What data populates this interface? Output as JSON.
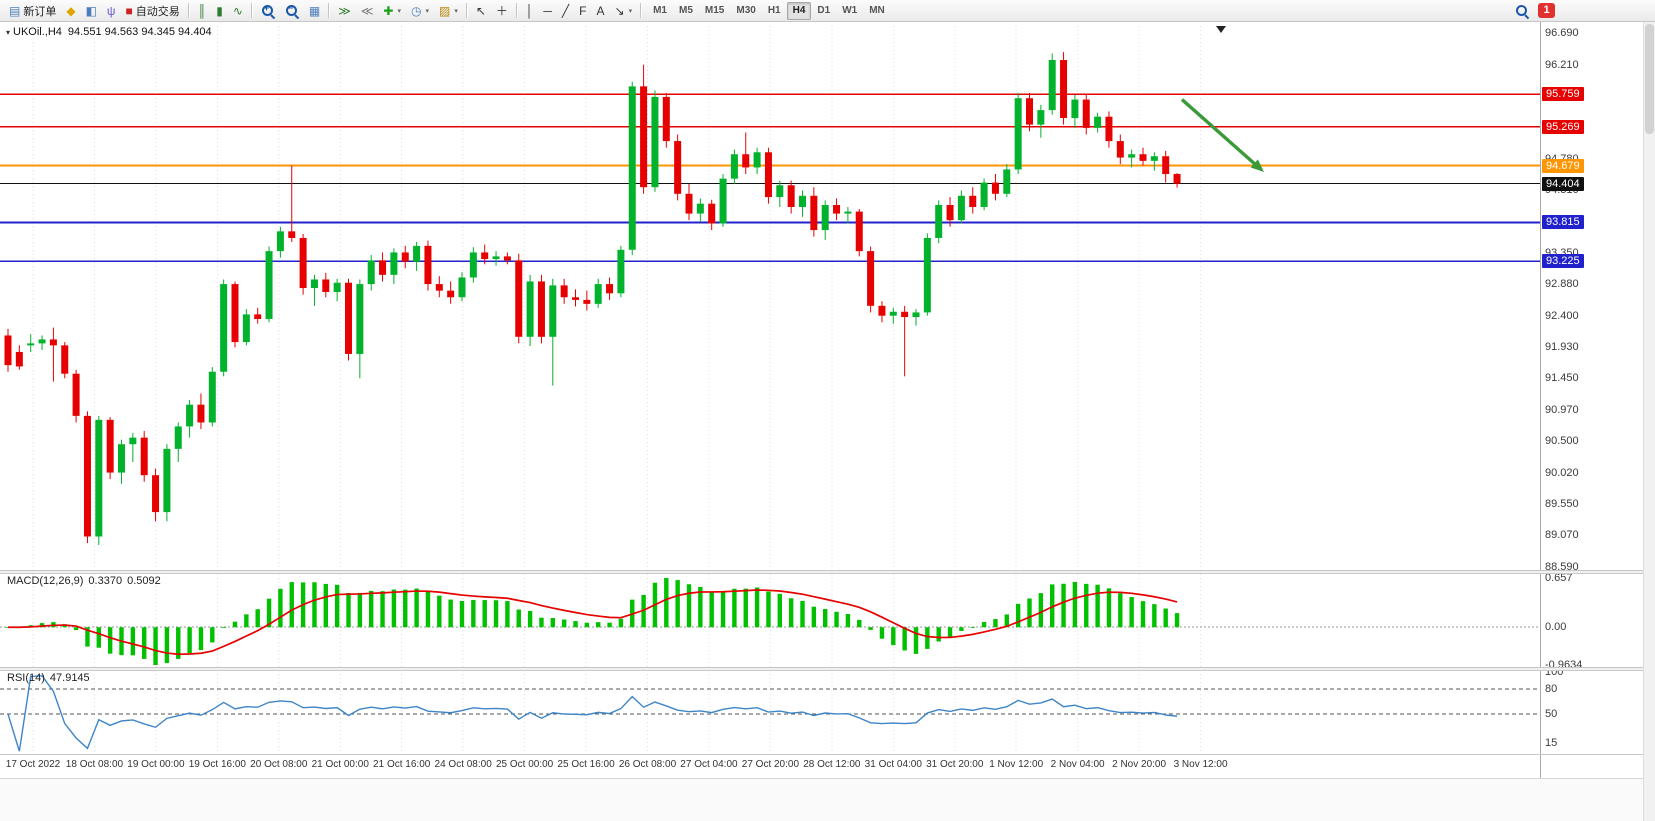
{
  "app": {
    "toolbar": {
      "items": [
        {
          "type": "button",
          "name": "new-order-button",
          "icon": "new-order-icon",
          "glyph": "▤",
          "color": "#4a7ebb",
          "label": "新订单"
        },
        {
          "type": "button",
          "name": "market-watch-icon",
          "glyph": "◆",
          "color": "#dfa400"
        },
        {
          "type": "button",
          "name": "profile-icon",
          "glyph": "◧",
          "color": "#4a7ebb"
        },
        {
          "type": "button",
          "name": "scripts-icon",
          "glyph": "ψ",
          "color": "#6a5acd"
        },
        {
          "type": "button",
          "name": "autotrade-button",
          "icon": "autotrade-icon",
          "glyph": "■",
          "color": "#cc2222",
          "label": "自动交易"
        },
        {
          "type": "sep"
        },
        {
          "type": "button",
          "name": "bar-chart-type-icon",
          "glyph": "║",
          "color": "#2e7d32"
        },
        {
          "type": "button",
          "name": "candlestick-chart-type-icon",
          "glyph": "▮",
          "color": "#2e7d32"
        },
        {
          "type": "button",
          "name": "line-chart-type-icon",
          "glyph": "∿",
          "color": "#2e7d32"
        },
        {
          "type": "sep"
        },
        {
          "type": "button",
          "name": "zoom-in-icon",
          "magnifier": "+"
        },
        {
          "type": "button",
          "name": "zoom-out-icon",
          "magnifier": "−"
        },
        {
          "type": "button",
          "name": "tile-windows-icon",
          "glyph": "▦",
          "color": "#4a7ebb"
        },
        {
          "type": "sep"
        },
        {
          "type": "button",
          "name": "auto-scroll-icon",
          "glyph": "≫",
          "color": "#2e7d32"
        },
        {
          "type": "button",
          "name": "chart-shift-icon",
          "glyph": "≪",
          "color": "#777777"
        },
        {
          "type": "button",
          "name": "indicators-icon",
          "glyph": "✚",
          "color": "#19a319",
          "dropdown": true
        },
        {
          "type": "button",
          "name": "periods-icon",
          "glyph": "◷",
          "color": "#4a7ebb",
          "dropdown": true
        },
        {
          "type": "button",
          "name": "templates-icon",
          "glyph": "▨",
          "color": "#b8860b",
          "dropdown": true
        },
        {
          "type": "sep"
        },
        {
          "type": "button",
          "name": "cursor-icon",
          "glyph": "↖",
          "color": "#333333"
        },
        {
          "type": "button",
          "name": "crosshair-icon",
          "glyph": "＋",
          "color": "#333333"
        },
        {
          "type": "sep"
        },
        {
          "type": "button",
          "name": "vertical-line-icon",
          "glyph": "│",
          "color": "#333333"
        },
        {
          "type": "button",
          "name": "horizontal-line-icon",
          "glyph": "─",
          "color": "#333333"
        },
        {
          "type": "button",
          "name": "trendline-icon",
          "glyph": "╱",
          "color": "#333333"
        },
        {
          "type": "button",
          "name": "fibonacci-icon",
          "glyph": "F",
          "color": "#333333"
        },
        {
          "type": "button",
          "name": "text-icon",
          "glyph": "A",
          "color": "#333333"
        },
        {
          "type": "button",
          "name": "arrows-icon",
          "glyph": "↘",
          "color": "#333333",
          "dropdown": true
        },
        {
          "type": "sep"
        }
      ],
      "timeframes": [
        "M1",
        "M5",
        "M15",
        "M30",
        "H1",
        "H4",
        "D1",
        "W1",
        "MN"
      ],
      "active_timeframe": "H4",
      "notification_count": "1"
    }
  },
  "legend": {
    "symbol_period": "UKOil.,H4",
    "ohlc": "94.551 94.563 94.345 94.404"
  },
  "chart_data": {
    "type": "candlestick",
    "symbol": "UKOil",
    "timeframe": "H4",
    "ylim": [
      88.59,
      96.69
    ],
    "colors": {
      "bull": "#00B22C",
      "bear": "#E60000",
      "background": "#FFFFFF"
    },
    "price_axis_labels": [
      "96.690",
      "96.210",
      "94.780",
      "94.310",
      "93.350",
      "92.880",
      "92.400",
      "91.930",
      "91.450",
      "90.970",
      "90.500",
      "90.020",
      "89.550",
      "89.070",
      "88.590"
    ],
    "levels": [
      {
        "price": 95.759,
        "label": "95.759",
        "color": "#E60000",
        "width": 1.6
      },
      {
        "price": 95.269,
        "label": "95.269",
        "color": "#E60000",
        "width": 1.6
      },
      {
        "price": 94.679,
        "label": "94.679",
        "color": "#FF9500",
        "width": 2.2
      },
      {
        "price": 94.404,
        "label": "94.404",
        "color": "#111111",
        "width": 1.1
      },
      {
        "price": 93.815,
        "label": "93.815",
        "color": "#2222CC",
        "width": 1.6
      },
      {
        "price": 93.225,
        "label": "93.225",
        "color": "#2222CC",
        "width": 1.6
      }
    ],
    "annotations": [
      {
        "name": "down-arrow",
        "type": "arrow",
        "color": "#3A9A3A",
        "from_price": 95.68,
        "to_price": 94.58
      }
    ],
    "time_labels": [
      "17 Oct 2022",
      "18 Oct 08:00",
      "19 Oct 00:00",
      "19 Oct 16:00",
      "20 Oct 08:00",
      "21 Oct 00:00",
      "21 Oct 16:00",
      "24 Oct 08:00",
      "25 Oct 00:00",
      "25 Oct 16:00",
      "26 Oct 08:00",
      "27 Oct 04:00",
      "27 Oct 20:00",
      "28 Oct 12:00",
      "31 Oct 04:00",
      "31 Oct 20:00",
      "1 Nov 12:00",
      "2 Nov 04:00",
      "2 Nov 20:00",
      "3 Nov 12:00"
    ],
    "candles": [
      [
        92.1,
        92.2,
        91.55,
        91.65
      ],
      [
        91.85,
        91.95,
        91.58,
        91.63
      ],
      [
        91.95,
        92.12,
        91.85,
        91.98
      ],
      [
        91.98,
        92.1,
        91.88,
        92.04
      ],
      [
        92.04,
        92.22,
        91.4,
        91.95
      ],
      [
        91.95,
        92.0,
        91.45,
        91.52
      ],
      [
        91.52,
        91.58,
        90.78,
        90.88
      ],
      [
        90.88,
        90.95,
        88.95,
        89.05
      ],
      [
        89.05,
        90.88,
        88.92,
        90.82
      ],
      [
        90.82,
        90.86,
        89.92,
        90.02
      ],
      [
        90.02,
        90.52,
        89.85,
        90.45
      ],
      [
        90.45,
        90.62,
        90.18,
        90.55
      ],
      [
        90.55,
        90.65,
        89.88,
        89.98
      ],
      [
        89.98,
        90.08,
        89.28,
        89.42
      ],
      [
        89.42,
        90.45,
        89.28,
        90.38
      ],
      [
        90.38,
        90.78,
        90.18,
        90.72
      ],
      [
        90.72,
        91.12,
        90.55,
        91.05
      ],
      [
        91.05,
        91.22,
        90.68,
        90.78
      ],
      [
        90.78,
        91.62,
        90.72,
        91.55
      ],
      [
        91.55,
        92.95,
        91.48,
        92.88
      ],
      [
        92.88,
        92.92,
        91.92,
        92.0
      ],
      [
        92.0,
        92.5,
        91.95,
        92.42
      ],
      [
        92.42,
        92.52,
        92.28,
        92.35
      ],
      [
        92.35,
        93.45,
        92.3,
        93.38
      ],
      [
        93.38,
        93.75,
        93.28,
        93.68
      ],
      [
        93.68,
        94.68,
        93.52,
        93.58
      ],
      [
        93.58,
        93.64,
        92.72,
        92.82
      ],
      [
        92.82,
        93.02,
        92.55,
        92.95
      ],
      [
        92.95,
        93.05,
        92.68,
        92.76
      ],
      [
        92.76,
        92.96,
        92.62,
        92.9
      ],
      [
        92.9,
        92.96,
        91.72,
        91.82
      ],
      [
        91.82,
        92.95,
        91.45,
        92.88
      ],
      [
        92.88,
        93.32,
        92.78,
        93.24
      ],
      [
        93.24,
        93.36,
        92.92,
        93.02
      ],
      [
        93.02,
        93.42,
        92.88,
        93.36
      ],
      [
        93.36,
        93.46,
        93.12,
        93.22
      ],
      [
        93.22,
        93.52,
        93.08,
        93.46
      ],
      [
        93.46,
        93.54,
        92.78,
        92.88
      ],
      [
        92.88,
        93.0,
        92.68,
        92.78
      ],
      [
        92.78,
        92.92,
        92.58,
        92.68
      ],
      [
        92.68,
        93.06,
        92.62,
        92.98
      ],
      [
        92.98,
        93.44,
        92.9,
        93.36
      ],
      [
        93.36,
        93.48,
        93.18,
        93.26
      ],
      [
        93.26,
        93.38,
        93.16,
        93.3
      ],
      [
        93.3,
        93.36,
        93.18,
        93.24
      ],
      [
        93.24,
        93.34,
        91.98,
        92.08
      ],
      [
        92.08,
        93.02,
        91.94,
        92.92
      ],
      [
        92.92,
        93.02,
        91.98,
        92.08
      ],
      [
        92.08,
        92.96,
        91.34,
        92.86
      ],
      [
        92.86,
        92.96,
        92.58,
        92.68
      ],
      [
        92.68,
        92.8,
        92.54,
        92.64
      ],
      [
        92.64,
        92.78,
        92.48,
        92.58
      ],
      [
        92.58,
        92.96,
        92.52,
        92.88
      ],
      [
        92.88,
        92.98,
        92.64,
        92.74
      ],
      [
        92.74,
        93.46,
        92.68,
        93.4
      ],
      [
        93.4,
        95.95,
        93.32,
        95.88
      ],
      [
        95.88,
        96.21,
        94.25,
        94.35
      ],
      [
        94.35,
        95.82,
        94.28,
        95.72
      ],
      [
        95.72,
        95.78,
        94.95,
        95.05
      ],
      [
        95.05,
        95.15,
        94.15,
        94.25
      ],
      [
        94.25,
        94.4,
        93.85,
        93.95
      ],
      [
        93.95,
        94.18,
        93.82,
        94.1
      ],
      [
        94.1,
        94.16,
        93.7,
        93.8
      ],
      [
        93.8,
        94.55,
        93.75,
        94.48
      ],
      [
        94.48,
        94.92,
        94.4,
        94.85
      ],
      [
        94.85,
        95.18,
        94.55,
        94.65
      ],
      [
        94.65,
        94.95,
        94.55,
        94.88
      ],
      [
        94.88,
        94.95,
        94.1,
        94.2
      ],
      [
        94.2,
        94.45,
        94.05,
        94.38
      ],
      [
        94.38,
        94.45,
        93.95,
        94.05
      ],
      [
        94.05,
        94.3,
        93.9,
        94.22
      ],
      [
        94.22,
        94.35,
        93.6,
        93.7
      ],
      [
        93.7,
        94.15,
        93.55,
        94.08
      ],
      [
        94.08,
        94.18,
        93.85,
        93.95
      ],
      [
        93.95,
        94.05,
        93.8,
        93.98
      ],
      [
        93.98,
        94.02,
        93.3,
        93.38
      ],
      [
        93.38,
        93.45,
        92.45,
        92.55
      ],
      [
        92.55,
        92.62,
        92.3,
        92.4
      ],
      [
        92.4,
        92.52,
        92.28,
        92.46
      ],
      [
        92.46,
        92.55,
        91.48,
        92.38
      ],
      [
        92.38,
        92.5,
        92.25,
        92.45
      ],
      [
        92.45,
        93.65,
        92.4,
        93.58
      ],
      [
        93.58,
        94.15,
        93.5,
        94.08
      ],
      [
        94.08,
        94.2,
        93.75,
        93.85
      ],
      [
        93.85,
        94.3,
        93.8,
        94.22
      ],
      [
        94.22,
        94.35,
        93.95,
        94.05
      ],
      [
        94.05,
        94.48,
        94.0,
        94.42
      ],
      [
        94.42,
        94.55,
        94.15,
        94.25
      ],
      [
        94.25,
        94.7,
        94.2,
        94.62
      ],
      [
        94.62,
        95.78,
        94.55,
        95.7
      ],
      [
        95.7,
        95.78,
        95.2,
        95.3
      ],
      [
        95.3,
        95.6,
        95.1,
        95.52
      ],
      [
        95.52,
        96.38,
        95.45,
        96.28
      ],
      [
        96.28,
        96.4,
        95.3,
        95.4
      ],
      [
        95.4,
        95.75,
        95.25,
        95.68
      ],
      [
        95.68,
        95.75,
        95.15,
        95.25
      ],
      [
        95.25,
        95.48,
        95.18,
        95.42
      ],
      [
        95.42,
        95.5,
        94.95,
        95.05
      ],
      [
        95.05,
        95.15,
        94.7,
        94.8
      ],
      [
        94.8,
        94.92,
        94.65,
        94.85
      ],
      [
        94.85,
        94.95,
        94.68,
        94.75
      ],
      [
        94.75,
        94.88,
        94.6,
        94.82
      ],
      [
        94.82,
        94.9,
        94.42,
        94.55
      ],
      [
        94.551,
        94.563,
        94.345,
        94.404
      ]
    ],
    "indicators": {
      "macd": {
        "label": "MACD(12,26,9)",
        "value_main": "0.3370",
        "value_signal": "0.5092",
        "axis_labels": [
          "0.657",
          "0.00",
          "-0.9634"
        ],
        "histogram_color": "#00C000",
        "signal_color": "#E60000"
      },
      "rsi": {
        "label": "RSI(14)",
        "value": "47.9145",
        "axis_labels": [
          "100",
          "80",
          "50",
          "15"
        ],
        "axis_values": [
          100,
          80,
          50,
          15
        ],
        "level_lines": [
          80,
          50
        ],
        "line_color": "#3D85C8"
      }
    }
  }
}
